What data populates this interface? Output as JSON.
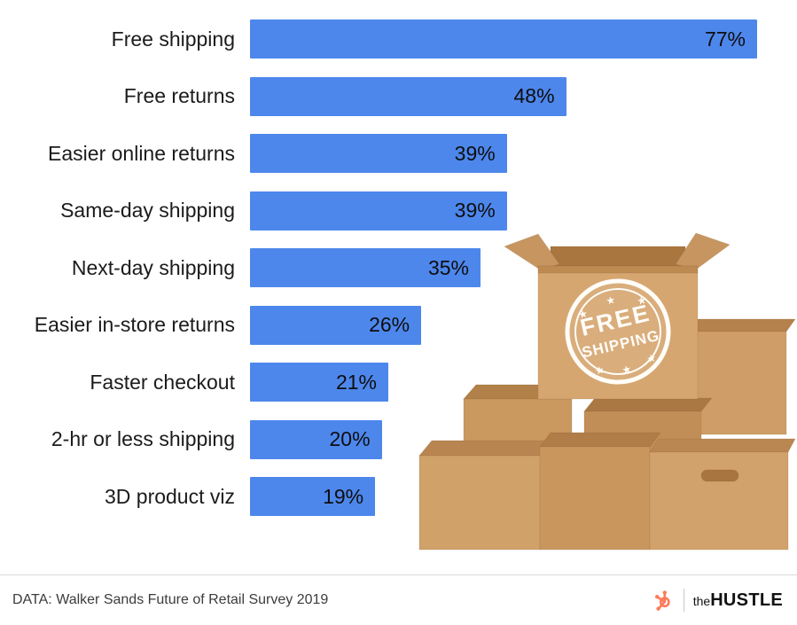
{
  "chart_data": {
    "type": "bar",
    "orientation": "horizontal",
    "title": "",
    "categories": [
      "Free shipping",
      "Free returns",
      "Easier online returns",
      "Same-day shipping",
      "Next-day shipping",
      "Easier in-store returns",
      "Faster checkout",
      "2-hr or less shipping",
      "3D product viz"
    ],
    "values": [
      77,
      48,
      39,
      39,
      35,
      26,
      21,
      20,
      19
    ],
    "value_suffix": "%",
    "xlim": [
      0,
      100
    ],
    "bar_color": "#4d87ec",
    "grid": false,
    "legend": "none",
    "value_labels": "inside-end"
  },
  "illustration": {
    "name": "stacked-cardboard-boxes-with-stamp",
    "stamp_line1": "FREE",
    "stamp_line2": "SHIPPING"
  },
  "footer": {
    "source_text": "DATA: Walker Sands Future of Retail Survey 2019",
    "brand": {
      "prefix": "the",
      "name": "HUSTLE"
    }
  },
  "colors": {
    "bar_blue": "#4d87ec",
    "label_text": "#1b1b1b",
    "footer_text": "#3c3c3c",
    "brand_orange": "#ff7a59"
  }
}
